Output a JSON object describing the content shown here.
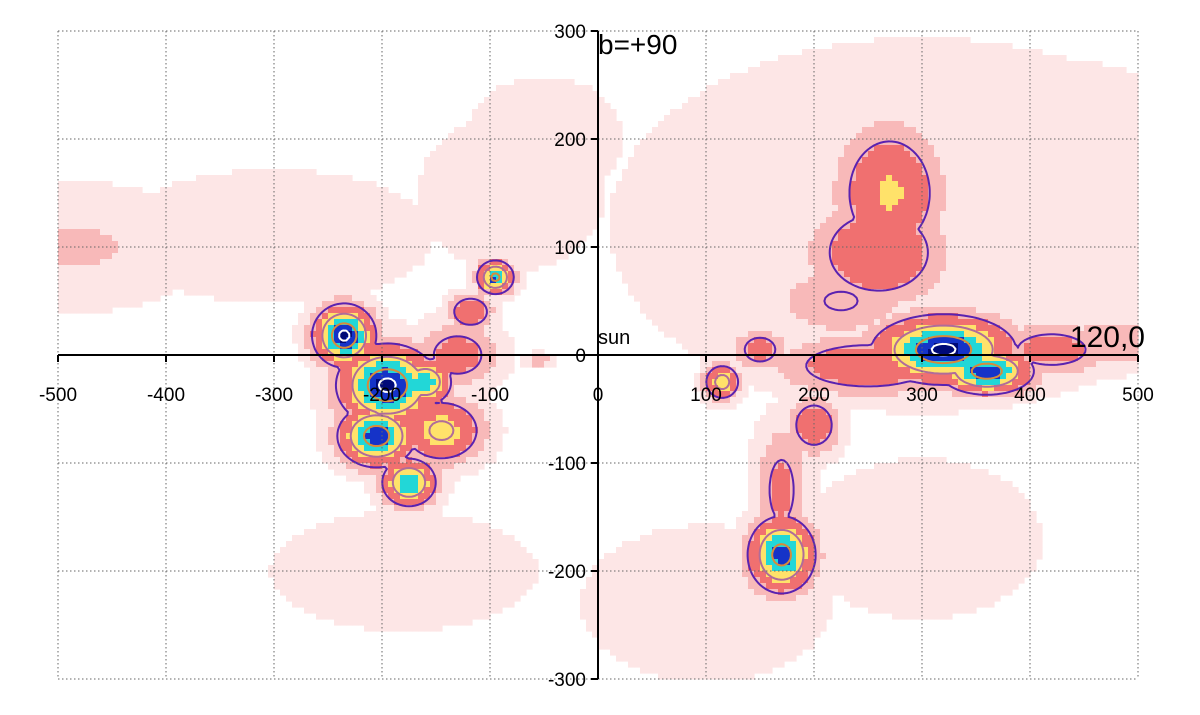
{
  "chart_data": {
    "type": "heatmap",
    "xlim": [
      -500,
      500
    ],
    "ylim": [
      -300,
      300
    ],
    "x_ticks": [
      -500,
      -400,
      -300,
      -200,
      -100,
      0,
      100,
      200,
      300,
      400,
      500
    ],
    "y_ticks": [
      -300,
      -200,
      -100,
      0,
      100,
      200,
      300
    ],
    "x_tick_labels": [
      "-500",
      "-400",
      "-300",
      "-200",
      "-100",
      "0",
      "100",
      "200",
      "300",
      "400",
      "500"
    ],
    "y_tick_labels": [
      "-300",
      "-200",
      "-100",
      "0",
      "100",
      "200",
      "300"
    ],
    "grid": true,
    "annotations": {
      "top_direction": "b=+90",
      "right_direction": "120,0",
      "origin": "sun"
    },
    "colormap": [
      "#fde6e6",
      "#f8b9b9",
      "#f07070",
      "#ffe26a",
      "#22d7d7",
      "#1533c8",
      "#000a78"
    ],
    "density_peaks": [
      {
        "x": -235,
        "y": 18,
        "level": 1.0,
        "sx": 20,
        "sy": 20
      },
      {
        "x": -195,
        "y": -28,
        "level": 1.0,
        "sx": 32,
        "sy": 26
      },
      {
        "x": -205,
        "y": -75,
        "level": 0.95,
        "sx": 25,
        "sy": 20
      },
      {
        "x": -160,
        "y": -25,
        "level": 0.8,
        "sx": 18,
        "sy": 16
      },
      {
        "x": -145,
        "y": -70,
        "level": 0.65,
        "sx": 28,
        "sy": 22
      },
      {
        "x": -175,
        "y": -118,
        "level": 0.85,
        "sx": 18,
        "sy": 16
      },
      {
        "x": -130,
        "y": 0,
        "level": 0.45,
        "sx": 28,
        "sy": 22
      },
      {
        "x": -95,
        "y": 72,
        "level": 0.9,
        "sx": 12,
        "sy": 11
      },
      {
        "x": -118,
        "y": 40,
        "level": 0.55,
        "sx": 15,
        "sy": 12
      },
      {
        "x": -55,
        "y": -5,
        "level": 0.3,
        "sx": 10,
        "sy": 5
      },
      {
        "x": 115,
        "y": -25,
        "level": 0.7,
        "sx": 12,
        "sy": 12
      },
      {
        "x": 150,
        "y": 5,
        "level": 0.45,
        "sx": 18,
        "sy": 14
      },
      {
        "x": 270,
        "y": 150,
        "level": 0.58,
        "sx": 35,
        "sy": 45
      },
      {
        "x": 260,
        "y": 95,
        "level": 0.55,
        "sx": 45,
        "sy": 35
      },
      {
        "x": 225,
        "y": 50,
        "level": 0.35,
        "sx": 45,
        "sy": 25
      },
      {
        "x": 320,
        "y": 5,
        "level": 1.0,
        "sx": 45,
        "sy": 22
      },
      {
        "x": 360,
        "y": -15,
        "level": 0.95,
        "sx": 30,
        "sy": 15
      },
      {
        "x": 250,
        "y": -10,
        "level": 0.52,
        "sx": 60,
        "sy": 20
      },
      {
        "x": 420,
        "y": 5,
        "level": 0.45,
        "sx": 40,
        "sy": 18
      },
      {
        "x": 480,
        "y": 12,
        "level": 0.33,
        "sx": 40,
        "sy": 18
      },
      {
        "x": 200,
        "y": -65,
        "level": 0.5,
        "sx": 18,
        "sy": 20
      },
      {
        "x": 170,
        "y": -125,
        "level": 0.4,
        "sx": 18,
        "sy": 45
      },
      {
        "x": 170,
        "y": -185,
        "level": 0.92,
        "sx": 22,
        "sy": 25
      },
      {
        "x": -480,
        "y": 100,
        "level": 0.22,
        "sx": 80,
        "sy": 40
      },
      {
        "x": -300,
        "y": 110,
        "level": 0.15,
        "sx": 120,
        "sy": 50
      },
      {
        "x": -80,
        "y": 150,
        "level": 0.2,
        "sx": 60,
        "sy": 50
      },
      {
        "x": -50,
        "y": 200,
        "level": 0.2,
        "sx": 50,
        "sy": 40
      },
      {
        "x": -180,
        "y": -200,
        "level": 0.18,
        "sx": 90,
        "sy": 40
      },
      {
        "x": 100,
        "y": -230,
        "level": 0.2,
        "sx": 80,
        "sy": 50
      },
      {
        "x": 300,
        "y": 120,
        "level": 0.2,
        "sx": 200,
        "sy": 120
      },
      {
        "x": 430,
        "y": 200,
        "level": 0.15,
        "sx": 90,
        "sy": 60
      },
      {
        "x": 300,
        "y": -170,
        "level": 0.15,
        "sx": 90,
        "sy": 60
      }
    ],
    "contour_levels": [
      {
        "level": 0.33,
        "color": "#5a22b0"
      },
      {
        "level": 0.6,
        "color": "#b06c9a"
      },
      {
        "level": 0.85,
        "color": "#d88a3a"
      },
      {
        "level": 0.97,
        "color": "#ffffff"
      }
    ]
  }
}
